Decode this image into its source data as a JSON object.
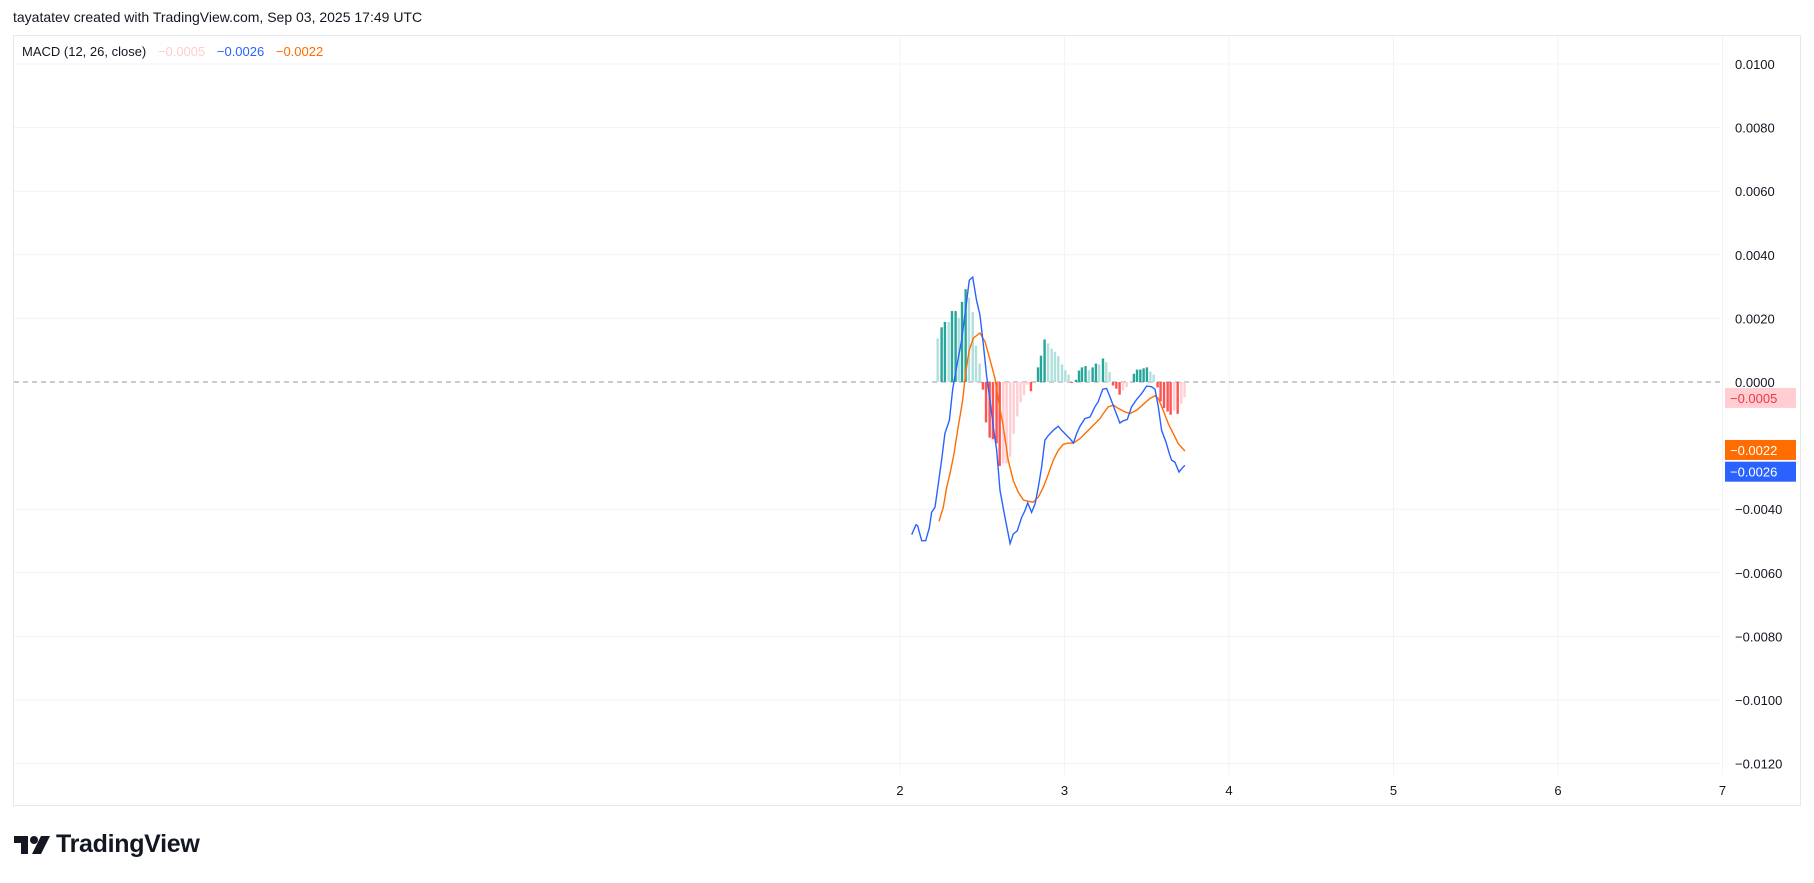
{
  "header": {
    "text": "tayatatev created with TradingView.com, Sep 03, 2025 17:49 UTC"
  },
  "legend": {
    "name": "MACD (12, 26, close)",
    "histogram_value": "−0.0005",
    "macd_value": "−0.0026",
    "signal_value": "−0.0022"
  },
  "logo": {
    "text": "TradingView",
    "icon": "tradingview-logo-icon"
  },
  "colors": {
    "macd": "#2962ff",
    "signal": "#ff6d00",
    "hist_grow_pos": "#26a69a",
    "hist_fall_pos": "#b2dfdb",
    "hist_grow_neg": "#ff5252",
    "hist_fall_neg": "#ffcdd2",
    "zero_line": "#9598a1",
    "grid": "#f0f3fa"
  },
  "chart_data": {
    "type": "line",
    "title": "MACD (12, 26, close)",
    "xlim": [
      1.2,
      7
    ],
    "ylim": [
      -0.0133,
      0.011
    ],
    "x_ticks": [
      2,
      3,
      4,
      5,
      6,
      7
    ],
    "x_tick_labels": [
      "2",
      "3",
      "4",
      "5",
      "6",
      "7"
    ],
    "y_ticks": [
      0.01,
      0.008,
      0.006,
      0.004,
      0.002,
      0,
      -0.004,
      -0.006,
      -0.008,
      -0.01,
      -0.012
    ],
    "y_tick_labels": [
      "0.0100",
      "0.0080",
      "0.0060",
      "0.0040",
      "0.0020",
      "0.0000",
      "−0.0040",
      "−0.0060",
      "−0.0080",
      "−0.0100",
      "−0.0120"
    ],
    "grid": true,
    "zero_line": "dashed",
    "price_tags": [
      {
        "label": "−0.0005",
        "value": -0.0005,
        "color_key": "hist_fall_neg",
        "text_color": "#f23645"
      },
      {
        "label": "−0.0022",
        "value": -0.0022,
        "color_key": "signal",
        "text_color": "#ffffff"
      },
      {
        "label": "−0.0026",
        "value": -0.0026,
        "color_key": "macd",
        "text_color": "#ffffff"
      }
    ],
    "macd": [
      [
        2.071,
        -0.0048
      ],
      [
        2.097,
        -0.00449
      ],
      [
        2.107,
        -0.00452
      ],
      [
        2.132,
        -0.00499
      ],
      [
        2.156,
        -0.00499
      ],
      [
        2.178,
        -0.00459
      ],
      [
        2.192,
        -0.0041
      ],
      [
        2.213,
        -0.00394
      ],
      [
        2.233,
        -0.0032
      ],
      [
        2.253,
        -0.00246
      ],
      [
        2.273,
        -0.00162
      ],
      [
        2.3,
        -0.0012
      ],
      [
        2.32,
        -0.00025
      ],
      [
        2.344,
        0.00048
      ],
      [
        2.375,
        0.00133
      ],
      [
        2.401,
        0.00238
      ],
      [
        2.421,
        0.0032
      ],
      [
        2.442,
        0.0033
      ],
      [
        2.466,
        0.00254
      ],
      [
        2.486,
        0.00212
      ],
      [
        2.506,
        0.00122
      ],
      [
        2.527,
        0.00017
      ],
      [
        2.547,
        -0.00057
      ],
      [
        2.567,
        -0.00141
      ],
      [
        2.588,
        -0.00215
      ],
      [
        2.608,
        -0.00341
      ],
      [
        2.638,
        -0.00426
      ],
      [
        2.669,
        -0.00508
      ],
      [
        2.689,
        -0.00478
      ],
      [
        2.713,
        -0.00468
      ],
      [
        2.739,
        -0.00426
      ],
      [
        2.76,
        -0.00404
      ],
      [
        2.776,
        -0.0038
      ],
      [
        2.8,
        -0.0041
      ],
      [
        2.821,
        -0.00383
      ],
      [
        2.841,
        -0.00331
      ],
      [
        2.861,
        -0.00268
      ],
      [
        2.881,
        -0.00183
      ],
      [
        2.902,
        -0.00168
      ],
      [
        2.932,
        -0.00152
      ],
      [
        2.962,
        -0.00139
      ],
      [
        2.983,
        -0.00152
      ],
      [
        3.013,
        -0.00168
      ],
      [
        3.033,
        -0.00178
      ],
      [
        3.054,
        -0.00192
      ],
      [
        3.074,
        -0.00162
      ],
      [
        3.094,
        -0.00139
      ],
      [
        3.124,
        -0.00115
      ],
      [
        3.155,
        -0.0011
      ],
      [
        3.185,
        -0.00078
      ],
      [
        3.205,
        -0.00062
      ],
      [
        3.232,
        -0.00023
      ],
      [
        3.256,
        -0.0002
      ],
      [
        3.276,
        -0.00046
      ],
      [
        3.307,
        -0.00089
      ],
      [
        3.337,
        -0.00129
      ],
      [
        3.357,
        -0.00122
      ],
      [
        3.382,
        -0.00118
      ],
      [
        3.408,
        -0.00078
      ],
      [
        3.438,
        -0.00055
      ],
      [
        3.469,
        -0.00036
      ],
      [
        3.499,
        -0.00013
      ],
      [
        3.53,
        -0.00015
      ],
      [
        3.55,
        -0.00023
      ],
      [
        3.57,
        -0.00078
      ],
      [
        3.59,
        -0.00152
      ],
      [
        3.617,
        -0.00189
      ],
      [
        3.637,
        -0.00225
      ],
      [
        3.651,
        -0.00246
      ],
      [
        3.671,
        -0.00252
      ],
      [
        3.696,
        -0.00283
      ],
      [
        3.712,
        -0.00273
      ],
      [
        3.732,
        -0.00262
      ]
    ],
    "signal": [
      [
        2.237,
        -0.00438
      ],
      [
        2.263,
        -0.00394
      ],
      [
        2.284,
        -0.00331
      ],
      [
        2.308,
        -0.00278
      ],
      [
        2.328,
        -0.00225
      ],
      [
        2.354,
        -0.00141
      ],
      [
        2.381,
        -0.00057
      ],
      [
        2.401,
        0.00038
      ],
      [
        2.421,
        0.00101
      ],
      [
        2.446,
        0.00138
      ],
      [
        2.486,
        0.00154
      ],
      [
        2.517,
        0.00127
      ],
      [
        2.547,
        0.0007
      ],
      [
        2.577,
        0.00012
      ],
      [
        2.598,
        -0.00057
      ],
      [
        2.628,
        -0.00141
      ],
      [
        2.658,
        -0.00246
      ],
      [
        2.689,
        -0.0031
      ],
      [
        2.719,
        -0.00347
      ],
      [
        2.75,
        -0.00371
      ],
      [
        2.78,
        -0.00375
      ],
      [
        2.81,
        -0.00378
      ],
      [
        2.841,
        -0.00362
      ],
      [
        2.871,
        -0.00331
      ],
      [
        2.902,
        -0.00289
      ],
      [
        2.932,
        -0.00246
      ],
      [
        2.962,
        -0.00215
      ],
      [
        2.993,
        -0.00196
      ],
      [
        3.023,
        -0.00192
      ],
      [
        3.054,
        -0.00192
      ],
      [
        3.094,
        -0.00178
      ],
      [
        3.135,
        -0.00157
      ],
      [
        3.175,
        -0.00136
      ],
      [
        3.216,
        -0.00115
      ],
      [
        3.236,
        -0.00099
      ],
      [
        3.266,
        -0.00078
      ],
      [
        3.297,
        -0.00073
      ],
      [
        3.327,
        -0.00083
      ],
      [
        3.367,
        -0.00094
      ],
      [
        3.398,
        -0.00099
      ],
      [
        3.438,
        -0.00089
      ],
      [
        3.479,
        -0.0007
      ],
      [
        3.519,
        -0.00052
      ],
      [
        3.55,
        -0.00043
      ],
      [
        3.57,
        -0.00052
      ],
      [
        3.6,
        -0.00089
      ],
      [
        3.631,
        -0.00131
      ],
      [
        3.661,
        -0.00162
      ],
      [
        3.692,
        -0.00194
      ],
      [
        3.732,
        -0.00217
      ]
    ],
    "histogram": [
      [
        2.229,
        0.00137,
        "hist_fall_pos"
      ],
      [
        2.253,
        0.00172,
        "hist_grow_pos"
      ],
      [
        2.273,
        0.00189,
        "hist_grow_pos"
      ],
      [
        2.296,
        0.00189,
        "hist_fall_pos"
      ],
      [
        2.316,
        0.00223,
        "hist_grow_pos"
      ],
      [
        2.338,
        0.00223,
        "hist_grow_pos"
      ],
      [
        2.357,
        0.00202,
        "hist_fall_pos"
      ],
      [
        2.377,
        0.00252,
        "hist_grow_pos"
      ],
      [
        2.399,
        0.00292,
        "hist_grow_pos"
      ],
      [
        2.419,
        0.00265,
        "hist_fall_pos"
      ],
      [
        2.442,
        0.0022,
        "hist_fall_pos"
      ],
      [
        2.462,
        0.00115,
        "hist_fall_pos"
      ],
      [
        2.484,
        0.00058,
        "hist_fall_pos"
      ],
      [
        2.504,
        -0.00024,
        "hist_grow_neg"
      ],
      [
        2.523,
        -0.00127,
        "hist_grow_neg"
      ],
      [
        2.545,
        -0.00175,
        "hist_grow_neg"
      ],
      [
        2.565,
        -0.0018,
        "hist_grow_neg"
      ],
      [
        2.587,
        -0.00193,
        "hist_grow_neg"
      ],
      [
        2.606,
        -0.00264,
        "hist_grow_neg"
      ],
      [
        2.628,
        -0.00256,
        "hist_fall_neg"
      ],
      [
        2.648,
        -0.00256,
        "hist_fall_neg"
      ],
      [
        2.67,
        -0.00235,
        "hist_fall_neg"
      ],
      [
        2.691,
        -0.00163,
        "hist_fall_neg"
      ],
      [
        2.713,
        -0.00108,
        "hist_fall_neg"
      ],
      [
        2.733,
        -0.00064,
        "hist_fall_neg"
      ],
      [
        2.754,
        -0.00042,
        "hist_fall_neg"
      ],
      [
        2.776,
        -8e-05,
        "hist_fall_neg"
      ],
      [
        2.796,
        -0.00029,
        "hist_grow_neg"
      ],
      [
        2.839,
        0.00046,
        "hist_grow_pos"
      ],
      [
        2.857,
        0.00083,
        "hist_grow_pos"
      ],
      [
        2.879,
        0.00134,
        "hist_grow_pos"
      ],
      [
        2.9,
        0.00121,
        "hist_fall_pos"
      ],
      [
        2.922,
        0.00105,
        "hist_fall_pos"
      ],
      [
        2.942,
        0.00095,
        "hist_fall_pos"
      ],
      [
        2.962,
        0.00081,
        "hist_fall_pos"
      ],
      [
        2.985,
        0.00055,
        "hist_fall_pos"
      ],
      [
        3.005,
        0.00037,
        "hist_fall_pos"
      ],
      [
        3.025,
        0.00023,
        "hist_fall_pos"
      ],
      [
        3.045,
        -3e-05,
        "hist_grow_neg"
      ],
      [
        3.07,
        7e-05,
        "hist_grow_pos"
      ],
      [
        3.088,
        0.00036,
        "hist_grow_pos"
      ],
      [
        3.106,
        0.00046,
        "hist_grow_pos"
      ],
      [
        3.128,
        0.0005,
        "hist_grow_pos"
      ],
      [
        3.149,
        0.00037,
        "hist_fall_pos"
      ],
      [
        3.171,
        0.00046,
        "hist_grow_pos"
      ],
      [
        3.191,
        0.00058,
        "hist_grow_pos"
      ],
      [
        3.211,
        0.00055,
        "hist_fall_pos"
      ],
      [
        3.234,
        0.00074,
        "hist_grow_pos"
      ],
      [
        3.254,
        0.00062,
        "hist_fall_pos"
      ],
      [
        3.274,
        0.00031,
        "hist_fall_pos"
      ],
      [
        3.295,
        -0.00011,
        "hist_grow_neg"
      ],
      [
        3.315,
        -0.00021,
        "hist_grow_neg"
      ],
      [
        3.335,
        -0.0004,
        "hist_grow_neg"
      ],
      [
        3.355,
        -0.00026,
        "hist_fall_neg"
      ],
      [
        3.378,
        -0.00016,
        "hist_fall_neg"
      ],
      [
        3.422,
        0.00026,
        "hist_grow_pos"
      ],
      [
        3.441,
        0.00039,
        "hist_grow_pos"
      ],
      [
        3.461,
        0.00039,
        "hist_grow_pos"
      ],
      [
        3.481,
        0.00043,
        "hist_grow_pos"
      ],
      [
        3.501,
        0.00046,
        "hist_grow_pos"
      ],
      [
        3.522,
        0.00033,
        "hist_fall_pos"
      ],
      [
        3.542,
        0.00023,
        "hist_fall_pos"
      ],
      [
        3.566,
        -0.00017,
        "hist_grow_neg"
      ],
      [
        3.584,
        -0.00061,
        "hist_grow_neg"
      ],
      [
        3.605,
        -0.00082,
        "hist_grow_neg"
      ],
      [
        3.627,
        -0.00093,
        "hist_grow_neg"
      ],
      [
        3.645,
        -0.00103,
        "hist_grow_neg"
      ],
      [
        3.667,
        -0.0009,
        "hist_fall_neg"
      ],
      [
        3.688,
        -0.001,
        "hist_grow_neg"
      ],
      [
        3.71,
        -0.00068,
        "hist_fall_neg"
      ],
      [
        3.73,
        -0.00048,
        "hist_fall_neg"
      ]
    ]
  }
}
